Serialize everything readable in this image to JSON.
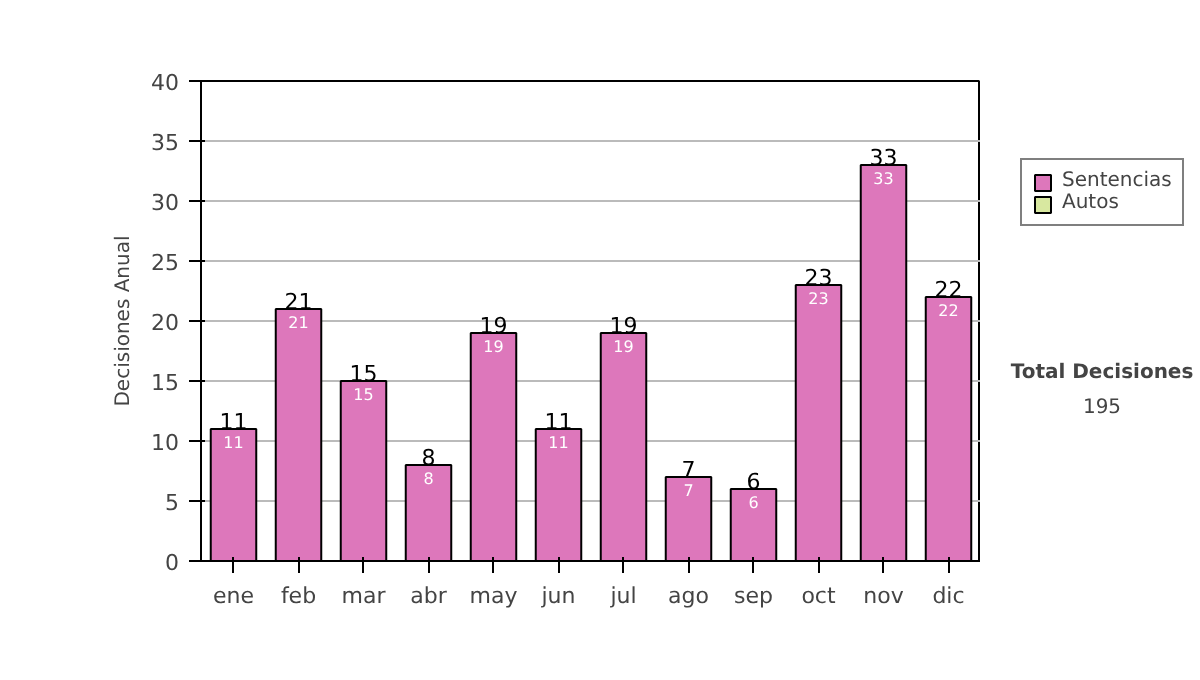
{
  "chart_data": {
    "type": "bar",
    "ylabel": "Decisiones Anual",
    "categories": [
      "ene",
      "feb",
      "mar",
      "abr",
      "may",
      "jun",
      "jul",
      "ago",
      "sep",
      "oct",
      "nov",
      "dic"
    ],
    "series": [
      {
        "name": "Sentencias",
        "color": "#dd77bb",
        "values": [
          11,
          21,
          15,
          8,
          19,
          11,
          19,
          7,
          6,
          23,
          33,
          22
        ]
      },
      {
        "name": "Autos",
        "color": "#d8e8a0",
        "values": [
          null,
          null,
          null,
          null,
          null,
          null,
          null,
          null,
          null,
          null,
          null,
          null
        ]
      }
    ],
    "stacked": true,
    "data_labels": true,
    "totals": [
      "11",
      "21",
      "15",
      "8",
      "19",
      "11",
      "19",
      "7",
      "6",
      "23",
      "33",
      "22"
    ],
    "ylim": [
      0,
      40
    ],
    "yticks": [
      0,
      5,
      10,
      15,
      20,
      25,
      30,
      35,
      40
    ],
    "grid": "y",
    "legend": "right",
    "annotations": [
      "Total Decisiones",
      "195"
    ]
  }
}
